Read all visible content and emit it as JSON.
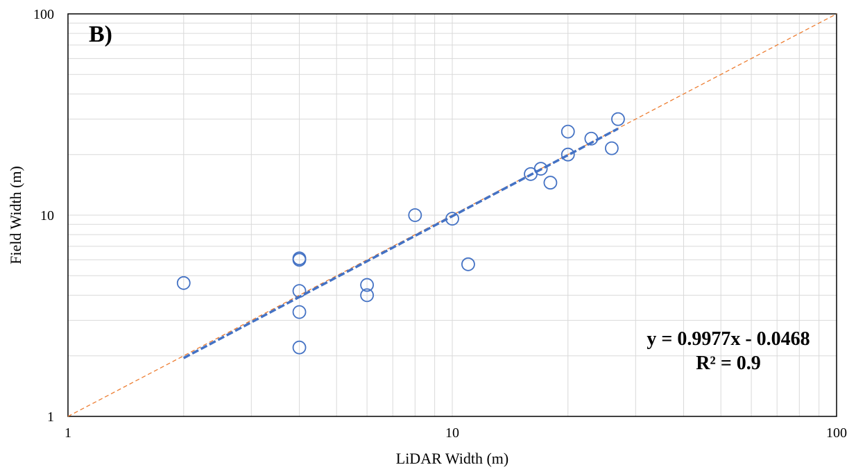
{
  "chart_data": {
    "type": "scatter",
    "panel_label": "B)",
    "xlabel": "LiDAR Width (m)",
    "ylabel": "Field Width (m)",
    "x_scale": "log",
    "y_scale": "log",
    "xlim": [
      1,
      100
    ],
    "ylim": [
      1,
      100
    ],
    "x_ticks": [
      "1",
      "10",
      "100"
    ],
    "y_ticks": [
      "1",
      "10",
      "100"
    ],
    "grid": true,
    "series": [
      {
        "marker": "open-circle",
        "color": "#4472C4",
        "points": [
          {
            "x": 2.0,
            "y": 4.6
          },
          {
            "x": 4.0,
            "y": 6.1
          },
          {
            "x": 4.0,
            "y": 6.0
          },
          {
            "x": 4.0,
            "y": 4.2
          },
          {
            "x": 4.0,
            "y": 3.3
          },
          {
            "x": 4.0,
            "y": 2.2
          },
          {
            "x": 6.0,
            "y": 4.5
          },
          {
            "x": 6.0,
            "y": 4.0
          },
          {
            "x": 8.0,
            "y": 10.0
          },
          {
            "x": 10.0,
            "y": 9.6
          },
          {
            "x": 11.0,
            "y": 5.7
          },
          {
            "x": 16.0,
            "y": 16.0
          },
          {
            "x": 17.0,
            "y": 17.0
          },
          {
            "x": 18.0,
            "y": 14.5
          },
          {
            "x": 20.0,
            "y": 26.0
          },
          {
            "x": 20.0,
            "y": 20.0
          },
          {
            "x": 23.0,
            "y": 24.0
          },
          {
            "x": 26.0,
            "y": 21.5
          },
          {
            "x": 27.0,
            "y": 30.0
          }
        ]
      }
    ],
    "trendline": {
      "color": "#4472C4",
      "style": "dashed",
      "x": [
        2.0,
        27.0
      ],
      "y": [
        1.95,
        26.9
      ]
    },
    "reference_line": {
      "color": "#ED7D31",
      "style": "dashed",
      "x": [
        1,
        100
      ],
      "y": [
        1,
        100
      ]
    },
    "equation": "y = 0.9977x - 0.0468",
    "r_squared": "R² = 0.9"
  }
}
